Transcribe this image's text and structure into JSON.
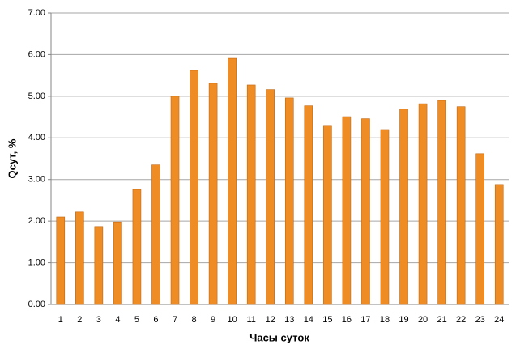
{
  "chart_data": {
    "type": "bar",
    "x_label": "Часы суток",
    "y_label": "Qсут, %",
    "categories": [
      "1",
      "2",
      "3",
      "4",
      "5",
      "6",
      "7",
      "8",
      "9",
      "10",
      "11",
      "12",
      "13",
      "14",
      "15",
      "16",
      "17",
      "18",
      "19",
      "20",
      "21",
      "22",
      "23",
      "24"
    ],
    "values": [
      2.1,
      2.22,
      1.87,
      1.98,
      2.76,
      3.35,
      5.0,
      5.62,
      5.31,
      5.91,
      5.27,
      5.16,
      4.96,
      4.77,
      4.3,
      4.51,
      4.46,
      4.2,
      4.69,
      4.82,
      4.9,
      4.75,
      3.62,
      2.88
    ],
    "color": "#f08c24",
    "ylim": [
      0,
      7
    ],
    "yticks": [
      {
        "value": 0,
        "label": "0.00"
      },
      {
        "value": 1,
        "label": "1.00"
      },
      {
        "value": 2,
        "label": "2.00"
      },
      {
        "value": 3,
        "label": "3.00"
      },
      {
        "value": 4,
        "label": "4.00"
      },
      {
        "value": 5,
        "label": "5.00"
      },
      {
        "value": 6,
        "label": "6.00"
      },
      {
        "value": 7,
        "label": "7.00"
      }
    ],
    "grid": true
  }
}
